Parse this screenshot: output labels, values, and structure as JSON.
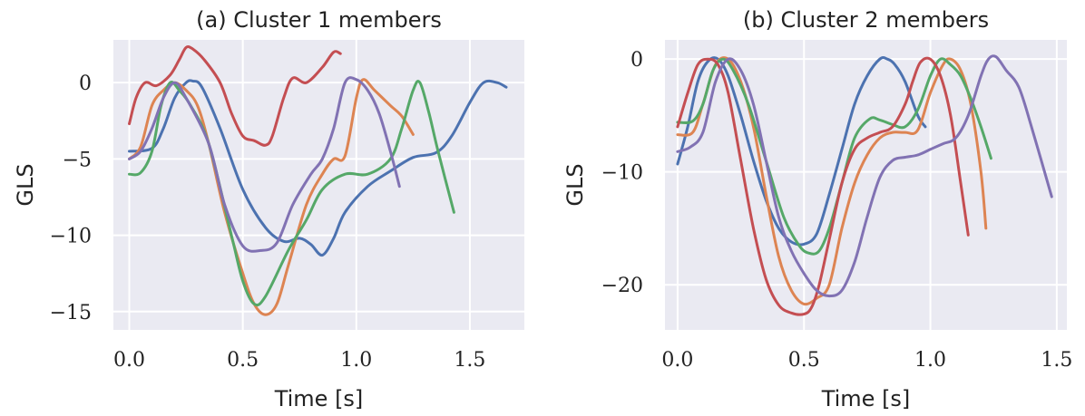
{
  "chart_data": [
    {
      "type": "line",
      "title": "(a) Cluster 1 members",
      "xlabel": "Time [s]",
      "ylabel": "GLS",
      "xlim": [
        -0.07,
        1.74
      ],
      "ylim": [
        -16.2,
        2.8
      ],
      "xticks": [
        0.0,
        0.5,
        1.0,
        1.5
      ],
      "xtick_labels": [
        "0.0",
        "0.5",
        "1.0",
        "1.5"
      ],
      "yticks": [
        0,
        -5,
        -10,
        -15
      ],
      "ytick_labels": [
        "0",
        "−5",
        "−10",
        "−15"
      ],
      "grid": true,
      "series": [
        {
          "color": "#4c72b0",
          "x": [
            0.0,
            0.1,
            0.15,
            0.2,
            0.25,
            0.28,
            0.32,
            0.4,
            0.5,
            0.6,
            0.68,
            0.75,
            0.8,
            0.85,
            0.9,
            0.95,
            1.05,
            1.15,
            1.25,
            1.35,
            1.42,
            1.5,
            1.56,
            1.62,
            1.66
          ],
          "y": [
            -4.5,
            -4.3,
            -3.0,
            -1.0,
            0.0,
            0.1,
            -0.3,
            -3.0,
            -7.0,
            -9.5,
            -10.4,
            -10.2,
            -10.6,
            -11.3,
            -10.2,
            -8.5,
            -6.8,
            -5.8,
            -4.9,
            -4.6,
            -3.5,
            -1.3,
            0.0,
            0.0,
            -0.3
          ]
        },
        {
          "color": "#dd8452",
          "x": [
            0.0,
            0.05,
            0.1,
            0.15,
            0.2,
            0.25,
            0.3,
            0.35,
            0.42,
            0.5,
            0.55,
            0.6,
            0.65,
            0.7,
            0.78,
            0.85,
            0.9,
            0.95,
            1.0,
            1.03,
            1.08,
            1.15,
            1.2,
            1.25
          ],
          "y": [
            -5.0,
            -4.2,
            -1.5,
            -0.5,
            0.0,
            -0.5,
            -1.5,
            -4.0,
            -8.5,
            -12.5,
            -14.5,
            -15.2,
            -14.5,
            -12.0,
            -8.0,
            -6.0,
            -5.0,
            -4.8,
            -1.0,
            0.2,
            -0.5,
            -1.5,
            -2.2,
            -3.4
          ]
        },
        {
          "color": "#55a868",
          "x": [
            0.0,
            0.05,
            0.1,
            0.14,
            0.18,
            0.22,
            0.27,
            0.35,
            0.45,
            0.5,
            0.55,
            0.6,
            0.7,
            0.78,
            0.85,
            0.95,
            1.05,
            1.15,
            1.2,
            1.25,
            1.28,
            1.32,
            1.36,
            1.43
          ],
          "y": [
            -6.0,
            -5.9,
            -4.5,
            -1.5,
            0.0,
            -0.5,
            -1.5,
            -4.0,
            -10.0,
            -13.0,
            -14.5,
            -14.0,
            -11.0,
            -9.0,
            -7.0,
            -6.0,
            -6.0,
            -5.0,
            -3.0,
            -0.5,
            0.0,
            -2.0,
            -4.5,
            -8.5
          ]
        },
        {
          "color": "#c44e52",
          "x": [
            0.0,
            0.03,
            0.07,
            0.12,
            0.18,
            0.22,
            0.25,
            0.28,
            0.33,
            0.4,
            0.45,
            0.5,
            0.55,
            0.6,
            0.63,
            0.68,
            0.72,
            0.78,
            0.85,
            0.9,
            0.93
          ],
          "y": [
            -2.7,
            -1.0,
            0.0,
            -0.2,
            0.5,
            1.5,
            2.3,
            2.2,
            1.5,
            0.0,
            -2.0,
            -3.5,
            -3.8,
            -4.1,
            -3.5,
            -1.0,
            0.3,
            0.0,
            1.0,
            2.0,
            1.9
          ]
        },
        {
          "color": "#8172b3",
          "x": [
            0.0,
            0.05,
            0.1,
            0.15,
            0.2,
            0.25,
            0.35,
            0.42,
            0.5,
            0.58,
            0.65,
            0.72,
            0.8,
            0.85,
            0.9,
            0.95,
            1.0,
            1.05,
            1.1,
            1.15,
            1.19
          ],
          "y": [
            -5.0,
            -4.5,
            -3.0,
            -1.0,
            0.0,
            -1.0,
            -4.0,
            -8.0,
            -10.7,
            -11.0,
            -10.5,
            -8.0,
            -6.0,
            -5.0,
            -3.0,
            0.0,
            0.2,
            -0.5,
            -2.0,
            -4.5,
            -6.8
          ]
        }
      ]
    },
    {
      "type": "line",
      "title": "(b) Cluster 2 members",
      "xlabel": "Time [s]",
      "ylabel": "GLS",
      "xlim": [
        -0.05,
        1.54
      ],
      "ylim": [
        -24.0,
        1.7
      ],
      "xticks": [
        0.0,
        0.5,
        1.0,
        1.5
      ],
      "xtick_labels": [
        "0.0",
        "0.5",
        "1.0",
        "1.5"
      ],
      "yticks": [
        0,
        -10,
        -20
      ],
      "ytick_labels": [
        "0",
        "−10",
        "−20"
      ],
      "grid": true,
      "series": [
        {
          "color": "#4c72b0",
          "x": [
            0.0,
            0.04,
            0.08,
            0.12,
            0.16,
            0.2,
            0.25,
            0.3,
            0.35,
            0.4,
            0.45,
            0.5,
            0.55,
            0.6,
            0.65,
            0.7,
            0.75,
            0.8,
            0.83,
            0.86,
            0.9,
            0.95,
            0.98
          ],
          "y": [
            -9.3,
            -6.0,
            -2.0,
            -0.2,
            0.0,
            -1.5,
            -5.0,
            -9.0,
            -12.5,
            -15.0,
            -16.2,
            -16.4,
            -15.5,
            -12.0,
            -8.0,
            -4.0,
            -1.5,
            0.0,
            0.0,
            -0.5,
            -2.0,
            -5.0,
            -6.0
          ]
        },
        {
          "color": "#dd8452",
          "x": [
            0.0,
            0.06,
            0.1,
            0.15,
            0.2,
            0.25,
            0.3,
            0.35,
            0.4,
            0.45,
            0.5,
            0.55,
            0.6,
            0.65,
            0.7,
            0.75,
            0.8,
            0.85,
            0.9,
            0.95,
            1.0,
            1.05,
            1.08,
            1.12,
            1.16,
            1.2,
            1.22
          ],
          "y": [
            -6.7,
            -6.5,
            -4.0,
            -0.5,
            0.0,
            -2.0,
            -6.0,
            -12.0,
            -17.5,
            -20.5,
            -21.7,
            -21.2,
            -20.0,
            -15.0,
            -11.0,
            -8.5,
            -7.0,
            -6.5,
            -6.5,
            -6.3,
            -3.0,
            -0.5,
            0.0,
            -1.0,
            -4.0,
            -10.0,
            -15.0
          ]
        },
        {
          "color": "#55a868",
          "x": [
            0.0,
            0.06,
            0.1,
            0.14,
            0.18,
            0.22,
            0.28,
            0.35,
            0.42,
            0.48,
            0.52,
            0.56,
            0.6,
            0.65,
            0.7,
            0.76,
            0.8,
            0.85,
            0.9,
            0.95,
            1.0,
            1.04,
            1.08,
            1.12,
            1.16,
            1.2,
            1.24
          ],
          "y": [
            -5.6,
            -5.5,
            -4.0,
            -1.0,
            0.0,
            -1.0,
            -4.0,
            -9.0,
            -14.0,
            -16.5,
            -17.2,
            -17.0,
            -15.0,
            -11.0,
            -7.0,
            -5.3,
            -5.4,
            -5.8,
            -6.0,
            -4.5,
            -1.5,
            0.0,
            -0.5,
            -1.5,
            -3.5,
            -6.0,
            -8.8
          ]
        },
        {
          "color": "#c44e52",
          "x": [
            0.0,
            0.04,
            0.08,
            0.12,
            0.16,
            0.2,
            0.25,
            0.3,
            0.35,
            0.4,
            0.45,
            0.5,
            0.53,
            0.56,
            0.6,
            0.65,
            0.7,
            0.75,
            0.8,
            0.85,
            0.9,
            0.93,
            0.96,
            1.0,
            1.04,
            1.08,
            1.12,
            1.15
          ],
          "y": [
            -6.0,
            -3.0,
            -0.5,
            0.0,
            -0.5,
            -3.0,
            -9.0,
            -15.0,
            -19.5,
            -21.8,
            -22.5,
            -22.6,
            -22.0,
            -20.0,
            -16.0,
            -11.0,
            -8.0,
            -7.0,
            -6.5,
            -6.0,
            -4.0,
            -2.0,
            -0.3,
            0.0,
            -1.5,
            -5.0,
            -11.0,
            -15.6
          ]
        },
        {
          "color": "#8172b3",
          "x": [
            0.0,
            0.05,
            0.1,
            0.15,
            0.2,
            0.25,
            0.3,
            0.35,
            0.4,
            0.45,
            0.5,
            0.55,
            0.6,
            0.65,
            0.7,
            0.75,
            0.8,
            0.85,
            0.9,
            0.95,
            1.0,
            1.05,
            1.1,
            1.15,
            1.2,
            1.23,
            1.26,
            1.3,
            1.35,
            1.4,
            1.48
          ],
          "y": [
            -8.2,
            -7.8,
            -6.5,
            -2.0,
            0.0,
            -1.0,
            -4.0,
            -9.0,
            -14.0,
            -17.0,
            -19.0,
            -20.5,
            -21.0,
            -20.5,
            -18.0,
            -14.0,
            -10.5,
            -9.0,
            -8.7,
            -8.5,
            -8.0,
            -7.5,
            -7.0,
            -5.0,
            -1.5,
            0.0,
            0.2,
            -1.0,
            -2.5,
            -6.0,
            -12.2
          ]
        }
      ]
    }
  ]
}
